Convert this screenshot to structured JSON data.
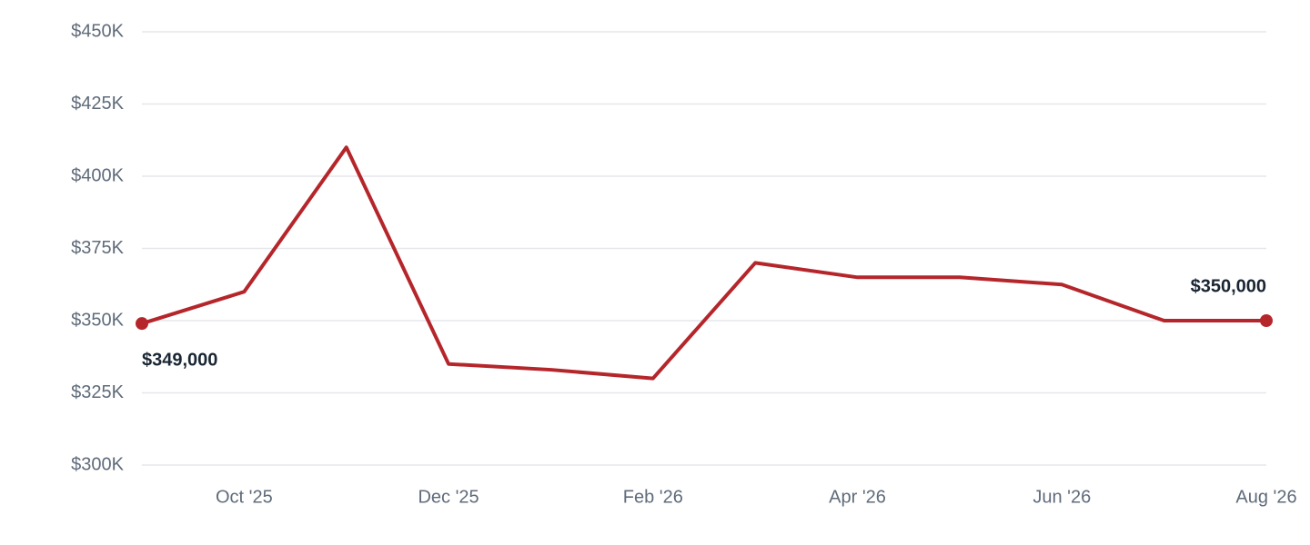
{
  "chart_data": {
    "type": "line",
    "categories": [
      null,
      "Oct '25",
      null,
      "Dec '25",
      null,
      "Feb '26",
      null,
      "Apr '26",
      null,
      "Jun '26",
      null,
      "Aug '26"
    ],
    "values": [
      349000,
      360000,
      410000,
      335000,
      333000,
      330000,
      370000,
      365000,
      365000,
      362500,
      350000,
      350000
    ],
    "value_labels": [
      "$349,000",
      null,
      null,
      null,
      null,
      null,
      null,
      null,
      null,
      null,
      null,
      "$350,000"
    ],
    "color": "#b5262b",
    "ylim": [
      300000,
      450000
    ],
    "yticks": [
      {
        "value": 300000,
        "label": "$300K"
      },
      {
        "value": 325000,
        "label": "$325K"
      },
      {
        "value": 350000,
        "label": "$350K"
      },
      {
        "value": 375000,
        "label": "$375K"
      },
      {
        "value": 400000,
        "label": "$400K"
      },
      {
        "value": 425000,
        "label": "$425K"
      },
      {
        "value": 450000,
        "label": "$450K"
      }
    ],
    "grid": true
  }
}
